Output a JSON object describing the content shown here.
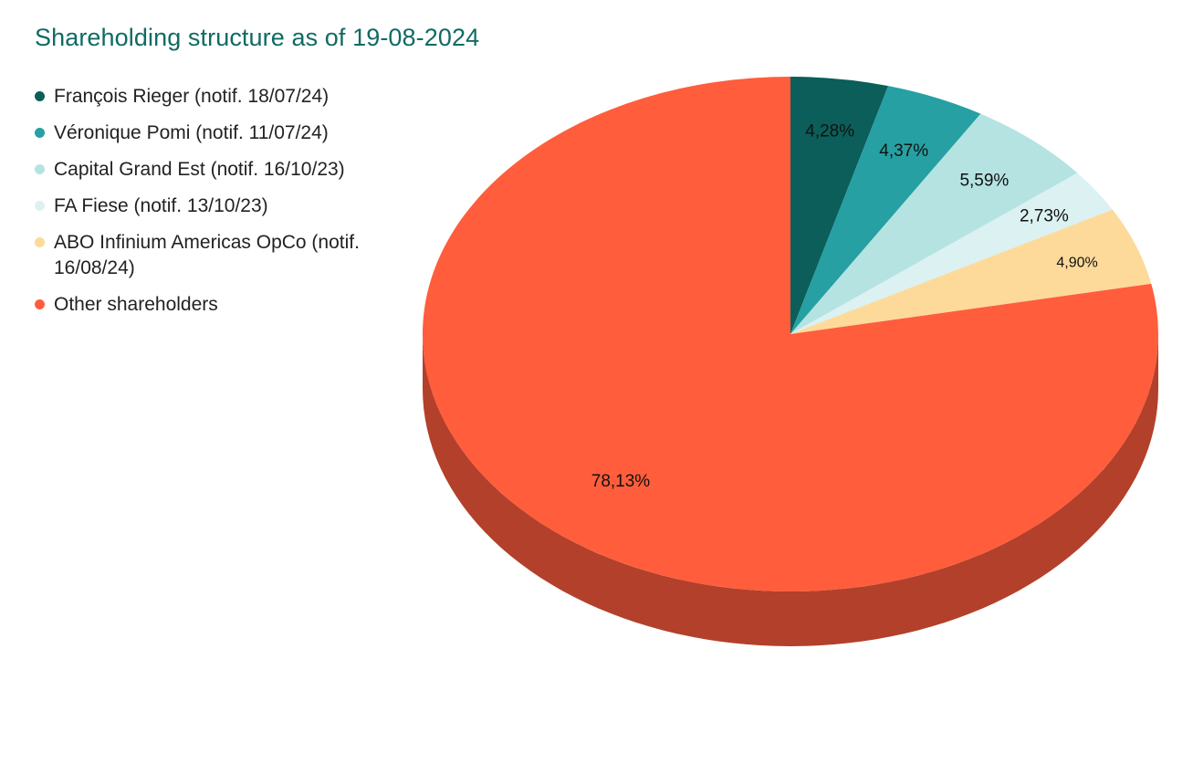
{
  "chart_data": {
    "type": "pie",
    "title": "Shareholding structure as of 19-08-2024",
    "slices": [
      {
        "label": "François Rieger (notif. 18/07/24)",
        "value": 4.28,
        "value_label": "4,28%",
        "color": "#0b5e5a"
      },
      {
        "label": "Véronique Pomi (notif. 11/07/24)",
        "value": 4.37,
        "value_label": "4,37%",
        "color": "#26a0a2"
      },
      {
        "label": "Capital Grand Est (notif. 16/10/23)",
        "value": 5.59,
        "value_label": "5,59%",
        "color": "#b5e3e2"
      },
      {
        "label": "FA Fiese (notif. 13/10/23)",
        "value": 2.73,
        "value_label": "2,73%",
        "color": "#dcf1f2"
      },
      {
        "label": "ABO Infinium Americas OpCo (notif. 16/08/24)",
        "value": 4.9,
        "value_label": "4,90%",
        "color": "#fdda9a"
      },
      {
        "label": "Other shareholders",
        "value": 78.13,
        "value_label": "78,13%",
        "color": "#ff5d3c"
      }
    ],
    "side_color": "#b3402a",
    "legend_position": "top-left",
    "style": "3d"
  }
}
